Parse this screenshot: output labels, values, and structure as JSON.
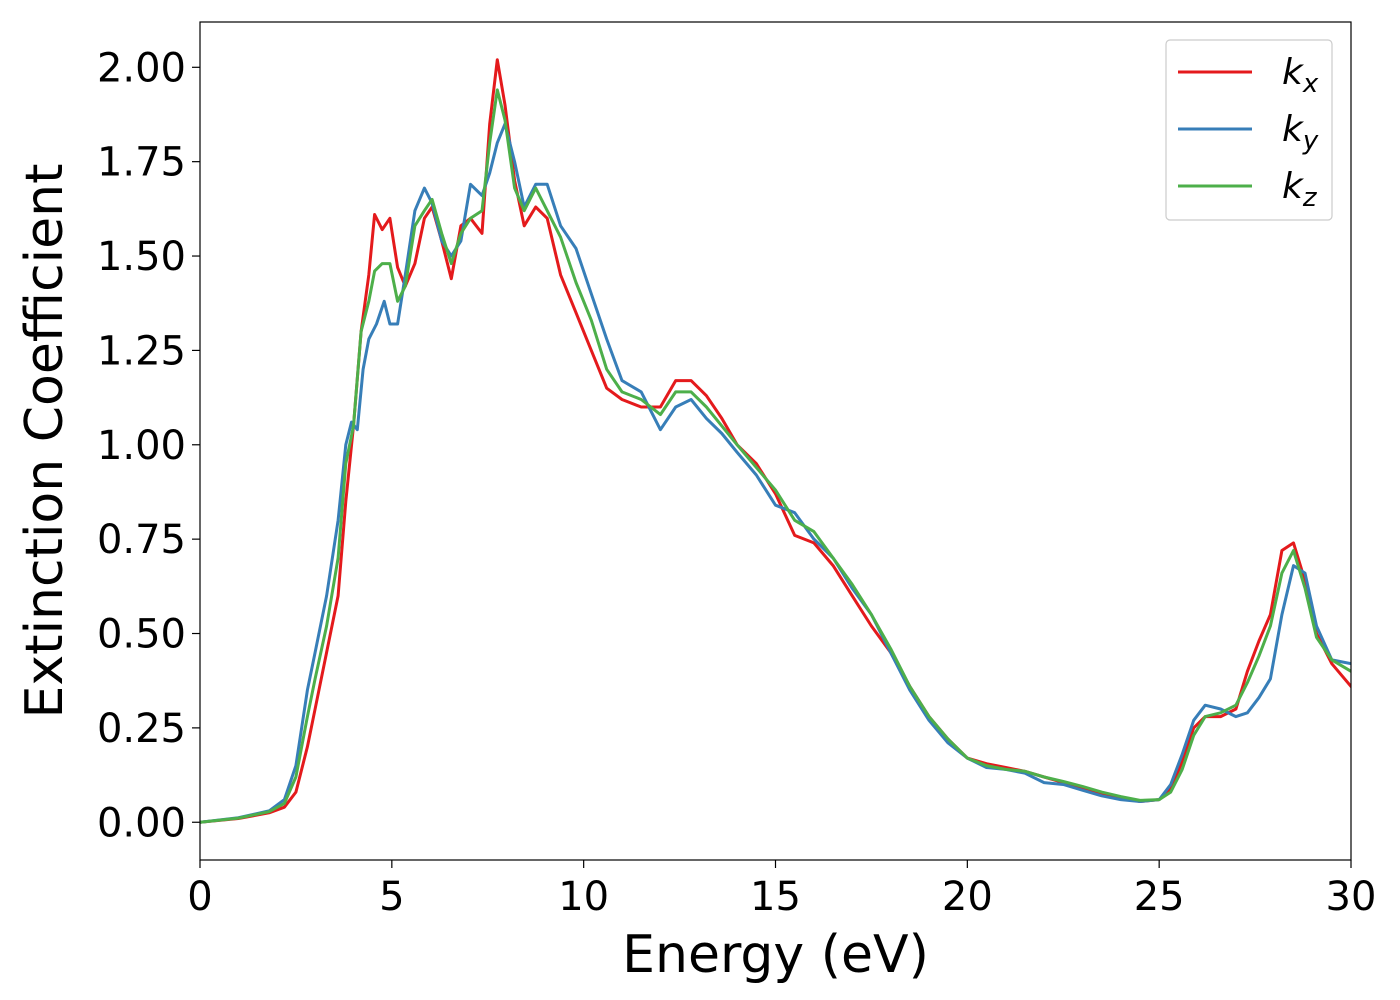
{
  "chart_data": {
    "type": "line",
    "title": "",
    "xlabel": "Energy (eV)",
    "ylabel": "Extinction Coefficient",
    "xlim": [
      0,
      30
    ],
    "ylim": [
      -0.1,
      2.12
    ],
    "xticks": [
      0,
      5,
      10,
      15,
      20,
      25,
      30
    ],
    "xtick_labels": [
      "0",
      "5",
      "10",
      "15",
      "20",
      "25",
      "30"
    ],
    "yticks": [
      0.0,
      0.25,
      0.5,
      0.75,
      1.0,
      1.25,
      1.5,
      1.75,
      2.0
    ],
    "ytick_labels": [
      "0.00",
      "0.25",
      "0.50",
      "0.75",
      "1.00",
      "1.25",
      "1.50",
      "1.75",
      "2.00"
    ],
    "grid": false,
    "legend_position": "top-right",
    "series": [
      {
        "name": "k",
        "subscript": "x",
        "color": "#e41a1c",
        "x": [
          0,
          1,
          1.8,
          2.2,
          2.5,
          2.8,
          3.0,
          3.3,
          3.6,
          3.8,
          4.0,
          4.2,
          4.4,
          4.55,
          4.75,
          4.95,
          5.15,
          5.35,
          5.6,
          5.85,
          6.05,
          6.3,
          6.55,
          6.8,
          7.05,
          7.35,
          7.55,
          7.75,
          7.95,
          8.2,
          8.45,
          8.75,
          9.05,
          9.4,
          9.8,
          10.2,
          10.6,
          11.0,
          11.5,
          12.0,
          12.4,
          12.8,
          13.2,
          13.6,
          14.0,
          14.5,
          15.0,
          15.5,
          16.0,
          16.5,
          17.0,
          17.5,
          18.0,
          18.5,
          19.0,
          19.5,
          20.0,
          20.5,
          21.0,
          21.5,
          22.0,
          22.5,
          23.0,
          23.5,
          24.0,
          24.5,
          25.0,
          25.3,
          25.6,
          25.9,
          26.2,
          26.6,
          27.0,
          27.3,
          27.6,
          27.9,
          28.2,
          28.5,
          28.8,
          29.1,
          29.5,
          30.0
        ],
        "y": [
          0.0,
          0.01,
          0.025,
          0.04,
          0.08,
          0.2,
          0.3,
          0.45,
          0.6,
          0.85,
          1.05,
          1.3,
          1.45,
          1.61,
          1.57,
          1.6,
          1.47,
          1.42,
          1.48,
          1.6,
          1.63,
          1.54,
          1.44,
          1.58,
          1.6,
          1.56,
          1.85,
          2.02,
          1.9,
          1.7,
          1.58,
          1.63,
          1.6,
          1.45,
          1.35,
          1.25,
          1.15,
          1.12,
          1.1,
          1.1,
          1.17,
          1.17,
          1.13,
          1.07,
          1.0,
          0.95,
          0.87,
          0.76,
          0.74,
          0.68,
          0.6,
          0.52,
          0.45,
          0.36,
          0.28,
          0.22,
          0.17,
          0.155,
          0.145,
          0.135,
          0.12,
          0.105,
          0.09,
          0.075,
          0.065,
          0.055,
          0.06,
          0.09,
          0.16,
          0.25,
          0.28,
          0.28,
          0.3,
          0.4,
          0.48,
          0.55,
          0.72,
          0.74,
          0.64,
          0.5,
          0.42,
          0.36
        ]
      },
      {
        "name": "k",
        "subscript": "y",
        "color": "#377eb8",
        "x": [
          0,
          1,
          1.8,
          2.2,
          2.5,
          2.8,
          3.0,
          3.3,
          3.6,
          3.8,
          3.95,
          4.1,
          4.25,
          4.4,
          4.6,
          4.8,
          4.95,
          5.15,
          5.35,
          5.6,
          5.85,
          6.05,
          6.3,
          6.55,
          6.8,
          7.05,
          7.35,
          7.55,
          7.75,
          7.95,
          8.2,
          8.45,
          8.75,
          9.05,
          9.4,
          9.8,
          10.2,
          10.6,
          11.0,
          11.5,
          12.0,
          12.4,
          12.8,
          13.2,
          13.6,
          14.0,
          14.5,
          15.0,
          15.5,
          16.0,
          16.5,
          17.0,
          17.5,
          18.0,
          18.5,
          19.0,
          19.5,
          20.0,
          20.5,
          21.0,
          21.5,
          22.0,
          22.5,
          23.0,
          23.5,
          24.0,
          24.5,
          25.0,
          25.3,
          25.6,
          25.9,
          26.2,
          26.6,
          27.0,
          27.3,
          27.6,
          27.9,
          28.2,
          28.5,
          28.8,
          29.1,
          29.5,
          30.0
        ],
        "y": [
          0.0,
          0.012,
          0.03,
          0.06,
          0.15,
          0.35,
          0.45,
          0.6,
          0.8,
          1.0,
          1.06,
          1.04,
          1.2,
          1.28,
          1.32,
          1.38,
          1.32,
          1.32,
          1.45,
          1.62,
          1.68,
          1.64,
          1.54,
          1.5,
          1.54,
          1.69,
          1.66,
          1.72,
          1.8,
          1.85,
          1.75,
          1.63,
          1.69,
          1.69,
          1.58,
          1.52,
          1.4,
          1.28,
          1.17,
          1.14,
          1.04,
          1.1,
          1.12,
          1.07,
          1.03,
          0.98,
          0.92,
          0.84,
          0.82,
          0.75,
          0.7,
          0.62,
          0.55,
          0.45,
          0.35,
          0.27,
          0.21,
          0.17,
          0.145,
          0.14,
          0.13,
          0.105,
          0.1,
          0.085,
          0.07,
          0.06,
          0.055,
          0.06,
          0.1,
          0.18,
          0.27,
          0.31,
          0.3,
          0.28,
          0.29,
          0.33,
          0.38,
          0.55,
          0.68,
          0.66,
          0.52,
          0.43,
          0.42
        ]
      },
      {
        "name": "k",
        "subscript": "z",
        "color": "#4daf4a",
        "x": [
          0,
          1,
          1.8,
          2.2,
          2.5,
          2.8,
          3.0,
          3.3,
          3.6,
          3.8,
          4.0,
          4.2,
          4.4,
          4.55,
          4.75,
          4.95,
          5.15,
          5.35,
          5.6,
          5.85,
          6.05,
          6.3,
          6.55,
          6.8,
          7.05,
          7.35,
          7.55,
          7.75,
          7.95,
          8.2,
          8.45,
          8.75,
          9.05,
          9.4,
          9.8,
          10.2,
          10.6,
          11.0,
          11.5,
          12.0,
          12.4,
          12.8,
          13.2,
          13.6,
          14.0,
          14.5,
          15.0,
          15.5,
          16.0,
          16.5,
          17.0,
          17.5,
          18.0,
          18.5,
          19.0,
          19.5,
          20.0,
          20.5,
          21.0,
          21.5,
          22.0,
          22.5,
          23.0,
          23.5,
          24.0,
          24.5,
          25.0,
          25.3,
          25.6,
          25.9,
          26.2,
          26.6,
          27.0,
          27.3,
          27.6,
          27.9,
          28.2,
          28.5,
          28.8,
          29.1,
          29.5,
          30.0
        ],
        "y": [
          0.0,
          0.011,
          0.028,
          0.05,
          0.12,
          0.28,
          0.38,
          0.52,
          0.7,
          0.95,
          1.05,
          1.3,
          1.38,
          1.46,
          1.48,
          1.48,
          1.38,
          1.42,
          1.58,
          1.62,
          1.65,
          1.56,
          1.48,
          1.56,
          1.6,
          1.62,
          1.8,
          1.94,
          1.86,
          1.68,
          1.62,
          1.68,
          1.62,
          1.55,
          1.43,
          1.33,
          1.2,
          1.14,
          1.12,
          1.08,
          1.14,
          1.14,
          1.1,
          1.05,
          1.0,
          0.94,
          0.88,
          0.8,
          0.77,
          0.7,
          0.63,
          0.55,
          0.46,
          0.36,
          0.28,
          0.22,
          0.17,
          0.15,
          0.14,
          0.135,
          0.12,
          0.108,
          0.095,
          0.08,
          0.068,
          0.058,
          0.06,
          0.08,
          0.14,
          0.23,
          0.28,
          0.29,
          0.31,
          0.37,
          0.44,
          0.52,
          0.66,
          0.72,
          0.62,
          0.49,
          0.43,
          0.4
        ]
      }
    ]
  }
}
